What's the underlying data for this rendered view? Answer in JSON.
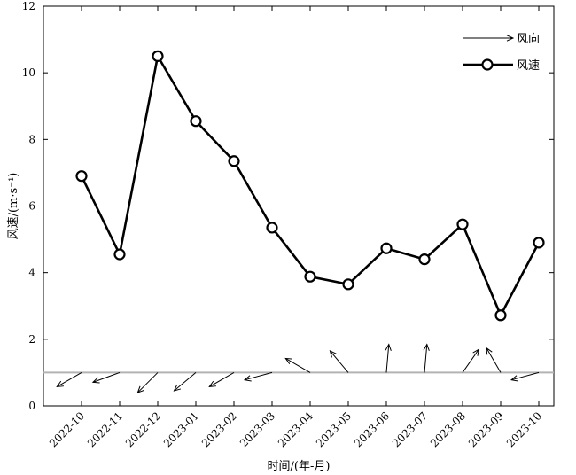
{
  "chart_data": {
    "type": "line",
    "title": "",
    "xlabel": "时间/(年-月)",
    "ylabel": "风速/(m·s⁻¹)",
    "categories": [
      "2022-10",
      "2022-11",
      "2022-12",
      "2023-01",
      "2023-02",
      "2023-03",
      "2023-04",
      "2023-05",
      "2023-06",
      "2023-07",
      "2023-08",
      "2023-09",
      "2023-10"
    ],
    "yticks": [
      "0",
      "2",
      "4",
      "6",
      "8",
      "10",
      "12"
    ],
    "ylim": [
      0,
      12
    ],
    "grid": false,
    "legend_position": "top-right",
    "legend": {
      "direction_label": "风向",
      "speed_label": "风速"
    },
    "series": [
      {
        "name": "风速",
        "values": [
          6.9,
          4.55,
          10.5,
          8.55,
          7.35,
          5.35,
          3.88,
          3.65,
          4.73,
          4.4,
          5.45,
          2.72,
          4.9
        ]
      }
    ],
    "wind_direction": {
      "name": "风向",
      "baseline_y": 1.0,
      "angles_deg": [
        210,
        200,
        225,
        220,
        210,
        195,
        150,
        130,
        85,
        85,
        55,
        120,
        195
      ],
      "relative_length": [
        1,
        1,
        1,
        1,
        1,
        1,
        1,
        1,
        1,
        1,
        1,
        1,
        1
      ]
    },
    "colors": {
      "series": "#000000",
      "baseline": "#b3b3b3"
    }
  }
}
